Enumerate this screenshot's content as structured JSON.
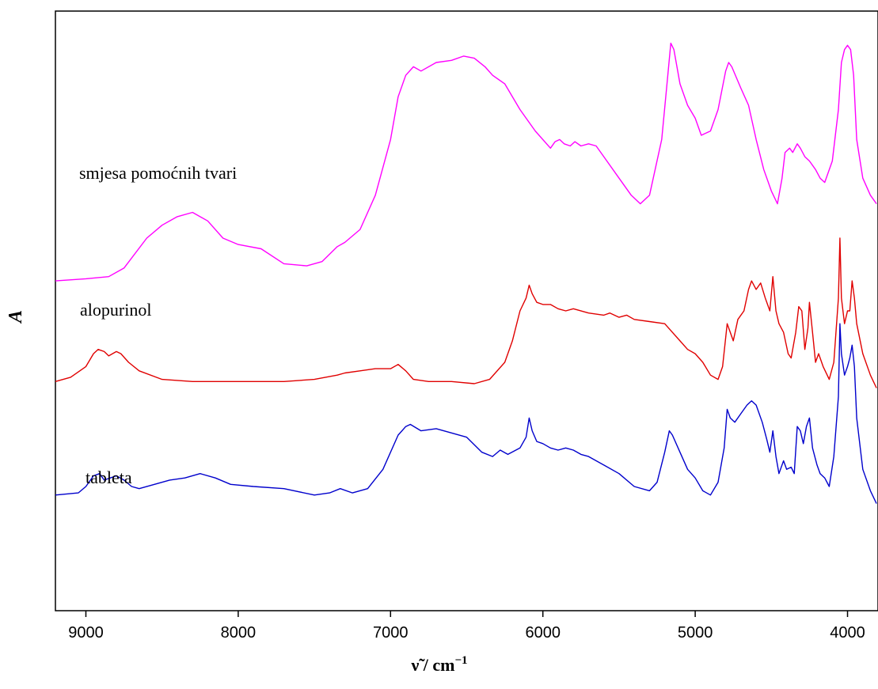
{
  "chart_data": {
    "type": "line",
    "xlabel": "ν̃ / cm",
    "xlabel_superscript": "−1",
    "ylabel": "A",
    "xlim": [
      9200,
      3800
    ],
    "x_reversed": true,
    "y_ticks_shown": false,
    "x_ticks": [
      9000,
      8000,
      7000,
      6000,
      5000,
      4000
    ],
    "x_tick_labels": [
      "9000",
      "8000",
      "7000",
      "6000",
      "5000",
      "4000"
    ],
    "grid": false,
    "legend": "inline-labels",
    "series": [
      {
        "name": "smjesa pomoćnih tvari",
        "color": "#ff00ff",
        "points": [
          [
            9200,
            0.62
          ],
          [
            9000,
            0.625
          ],
          [
            8850,
            0.63
          ],
          [
            8750,
            0.65
          ],
          [
            8600,
            0.72
          ],
          [
            8500,
            0.75
          ],
          [
            8400,
            0.77
          ],
          [
            8300,
            0.78
          ],
          [
            8200,
            0.76
          ],
          [
            8100,
            0.72
          ],
          [
            8000,
            0.705
          ],
          [
            7850,
            0.695
          ],
          [
            7700,
            0.66
          ],
          [
            7550,
            0.655
          ],
          [
            7450,
            0.665
          ],
          [
            7350,
            0.7
          ],
          [
            7300,
            0.71
          ],
          [
            7200,
            0.74
          ],
          [
            7100,
            0.82
          ],
          [
            7000,
            0.95
          ],
          [
            6950,
            1.05
          ],
          [
            6900,
            1.1
          ],
          [
            6850,
            1.12
          ],
          [
            6800,
            1.11
          ],
          [
            6700,
            1.13
          ],
          [
            6600,
            1.135
          ],
          [
            6520,
            1.145
          ],
          [
            6450,
            1.14
          ],
          [
            6380,
            1.12
          ],
          [
            6330,
            1.1
          ],
          [
            6250,
            1.08
          ],
          [
            6150,
            1.02
          ],
          [
            6050,
            0.97
          ],
          [
            5950,
            0.93
          ],
          [
            5920,
            0.945
          ],
          [
            5890,
            0.95
          ],
          [
            5860,
            0.94
          ],
          [
            5820,
            0.935
          ],
          [
            5790,
            0.945
          ],
          [
            5750,
            0.935
          ],
          [
            5700,
            0.94
          ],
          [
            5650,
            0.935
          ],
          [
            5600,
            0.91
          ],
          [
            5500,
            0.86
          ],
          [
            5420,
            0.82
          ],
          [
            5360,
            0.8
          ],
          [
            5300,
            0.82
          ],
          [
            5220,
            0.95
          ],
          [
            5180,
            1.1
          ],
          [
            5160,
            1.175
          ],
          [
            5140,
            1.16
          ],
          [
            5100,
            1.08
          ],
          [
            5050,
            1.03
          ],
          [
            5000,
            1.0
          ],
          [
            4960,
            0.96
          ],
          [
            4900,
            0.97
          ],
          [
            4850,
            1.02
          ],
          [
            4800,
            1.11
          ],
          [
            4780,
            1.13
          ],
          [
            4760,
            1.12
          ],
          [
            4700,
            1.07
          ],
          [
            4650,
            1.03
          ],
          [
            4600,
            0.95
          ],
          [
            4550,
            0.88
          ],
          [
            4500,
            0.83
          ],
          [
            4460,
            0.8
          ],
          [
            4430,
            0.86
          ],
          [
            4410,
            0.92
          ],
          [
            4380,
            0.93
          ],
          [
            4360,
            0.92
          ],
          [
            4330,
            0.94
          ],
          [
            4310,
            0.93
          ],
          [
            4280,
            0.91
          ],
          [
            4250,
            0.9
          ],
          [
            4210,
            0.88
          ],
          [
            4180,
            0.86
          ],
          [
            4150,
            0.85
          ],
          [
            4100,
            0.9
          ],
          [
            4060,
            1.02
          ],
          [
            4040,
            1.13
          ],
          [
            4020,
            1.16
          ],
          [
            4000,
            1.17
          ],
          [
            3980,
            1.16
          ],
          [
            3960,
            1.1
          ],
          [
            3940,
            0.95
          ],
          [
            3900,
            0.86
          ],
          [
            3850,
            0.82
          ],
          [
            3810,
            0.8
          ]
        ]
      },
      {
        "name": "alopurinol",
        "color": "#e00000",
        "points": [
          [
            9200,
            0.385
          ],
          [
            9100,
            0.395
          ],
          [
            9000,
            0.42
          ],
          [
            8950,
            0.45
          ],
          [
            8920,
            0.46
          ],
          [
            8880,
            0.455
          ],
          [
            8850,
            0.445
          ],
          [
            8800,
            0.455
          ],
          [
            8770,
            0.45
          ],
          [
            8720,
            0.43
          ],
          [
            8650,
            0.41
          ],
          [
            8500,
            0.39
          ],
          [
            8300,
            0.385
          ],
          [
            8000,
            0.385
          ],
          [
            7700,
            0.385
          ],
          [
            7500,
            0.39
          ],
          [
            7350,
            0.4
          ],
          [
            7300,
            0.405
          ],
          [
            7200,
            0.41
          ],
          [
            7100,
            0.415
          ],
          [
            7000,
            0.415
          ],
          [
            6950,
            0.425
          ],
          [
            6900,
            0.41
          ],
          [
            6850,
            0.39
          ],
          [
            6750,
            0.385
          ],
          [
            6600,
            0.385
          ],
          [
            6450,
            0.38
          ],
          [
            6350,
            0.39
          ],
          [
            6250,
            0.43
          ],
          [
            6200,
            0.48
          ],
          [
            6150,
            0.55
          ],
          [
            6110,
            0.58
          ],
          [
            6090,
            0.61
          ],
          [
            6070,
            0.59
          ],
          [
            6040,
            0.57
          ],
          [
            6000,
            0.565
          ],
          [
            5950,
            0.565
          ],
          [
            5900,
            0.555
          ],
          [
            5850,
            0.55
          ],
          [
            5800,
            0.555
          ],
          [
            5700,
            0.545
          ],
          [
            5600,
            0.54
          ],
          [
            5560,
            0.545
          ],
          [
            5500,
            0.535
          ],
          [
            5450,
            0.54
          ],
          [
            5400,
            0.53
          ],
          [
            5300,
            0.525
          ],
          [
            5200,
            0.52
          ],
          [
            5100,
            0.48
          ],
          [
            5050,
            0.46
          ],
          [
            5000,
            0.45
          ],
          [
            4950,
            0.43
          ],
          [
            4900,
            0.4
          ],
          [
            4850,
            0.39
          ],
          [
            4820,
            0.42
          ],
          [
            4790,
            0.52
          ],
          [
            4770,
            0.5
          ],
          [
            4750,
            0.48
          ],
          [
            4720,
            0.53
          ],
          [
            4680,
            0.55
          ],
          [
            4650,
            0.6
          ],
          [
            4630,
            0.62
          ],
          [
            4600,
            0.6
          ],
          [
            4570,
            0.615
          ],
          [
            4540,
            0.58
          ],
          [
            4510,
            0.55
          ],
          [
            4490,
            0.63
          ],
          [
            4470,
            0.55
          ],
          [
            4450,
            0.52
          ],
          [
            4420,
            0.5
          ],
          [
            4390,
            0.45
          ],
          [
            4370,
            0.44
          ],
          [
            4340,
            0.5
          ],
          [
            4320,
            0.56
          ],
          [
            4300,
            0.55
          ],
          [
            4280,
            0.46
          ],
          [
            4260,
            0.51
          ],
          [
            4250,
            0.57
          ],
          [
            4230,
            0.5
          ],
          [
            4210,
            0.43
          ],
          [
            4190,
            0.45
          ],
          [
            4160,
            0.42
          ],
          [
            4120,
            0.39
          ],
          [
            4090,
            0.43
          ],
          [
            4060,
            0.58
          ],
          [
            4050,
            0.72
          ],
          [
            4040,
            0.58
          ],
          [
            4020,
            0.52
          ],
          [
            4000,
            0.55
          ],
          [
            3985,
            0.55
          ],
          [
            3970,
            0.62
          ],
          [
            3955,
            0.58
          ],
          [
            3940,
            0.52
          ],
          [
            3900,
            0.45
          ],
          [
            3850,
            0.4
          ],
          [
            3810,
            0.37
          ]
        ]
      },
      {
        "name": "tableta",
        "color": "#0000cc",
        "points": [
          [
            9200,
            0.12
          ],
          [
            9050,
            0.125
          ],
          [
            9000,
            0.14
          ],
          [
            8950,
            0.165
          ],
          [
            8910,
            0.17
          ],
          [
            8880,
            0.155
          ],
          [
            8840,
            0.16
          ],
          [
            8800,
            0.165
          ],
          [
            8750,
            0.155
          ],
          [
            8700,
            0.14
          ],
          [
            8650,
            0.135
          ],
          [
            8550,
            0.145
          ],
          [
            8450,
            0.155
          ],
          [
            8350,
            0.16
          ],
          [
            8250,
            0.17
          ],
          [
            8150,
            0.16
          ],
          [
            8050,
            0.145
          ],
          [
            7900,
            0.14
          ],
          [
            7700,
            0.135
          ],
          [
            7500,
            0.12
          ],
          [
            7400,
            0.125
          ],
          [
            7330,
            0.135
          ],
          [
            7250,
            0.125
          ],
          [
            7150,
            0.135
          ],
          [
            7050,
            0.18
          ],
          [
            6950,
            0.26
          ],
          [
            6900,
            0.28
          ],
          [
            6870,
            0.285
          ],
          [
            6800,
            0.27
          ],
          [
            6700,
            0.275
          ],
          [
            6600,
            0.265
          ],
          [
            6500,
            0.255
          ],
          [
            6400,
            0.22
          ],
          [
            6330,
            0.21
          ],
          [
            6280,
            0.225
          ],
          [
            6230,
            0.215
          ],
          [
            6150,
            0.23
          ],
          [
            6110,
            0.255
          ],
          [
            6090,
            0.3
          ],
          [
            6070,
            0.27
          ],
          [
            6040,
            0.245
          ],
          [
            6000,
            0.24
          ],
          [
            5950,
            0.23
          ],
          [
            5900,
            0.225
          ],
          [
            5850,
            0.23
          ],
          [
            5800,
            0.225
          ],
          [
            5750,
            0.215
          ],
          [
            5700,
            0.21
          ],
          [
            5600,
            0.19
          ],
          [
            5500,
            0.17
          ],
          [
            5400,
            0.14
          ],
          [
            5300,
            0.13
          ],
          [
            5250,
            0.15
          ],
          [
            5200,
            0.22
          ],
          [
            5170,
            0.27
          ],
          [
            5150,
            0.26
          ],
          [
            5100,
            0.22
          ],
          [
            5050,
            0.18
          ],
          [
            5000,
            0.16
          ],
          [
            4950,
            0.13
          ],
          [
            4900,
            0.12
          ],
          [
            4850,
            0.15
          ],
          [
            4810,
            0.23
          ],
          [
            4790,
            0.32
          ],
          [
            4770,
            0.3
          ],
          [
            4740,
            0.29
          ],
          [
            4700,
            0.31
          ],
          [
            4660,
            0.33
          ],
          [
            4630,
            0.34
          ],
          [
            4600,
            0.33
          ],
          [
            4560,
            0.29
          ],
          [
            4530,
            0.25
          ],
          [
            4510,
            0.22
          ],
          [
            4490,
            0.27
          ],
          [
            4470,
            0.21
          ],
          [
            4450,
            0.17
          ],
          [
            4420,
            0.2
          ],
          [
            4400,
            0.18
          ],
          [
            4370,
            0.185
          ],
          [
            4350,
            0.17
          ],
          [
            4330,
            0.28
          ],
          [
            4310,
            0.27
          ],
          [
            4290,
            0.24
          ],
          [
            4270,
            0.28
          ],
          [
            4250,
            0.3
          ],
          [
            4230,
            0.23
          ],
          [
            4200,
            0.19
          ],
          [
            4180,
            0.17
          ],
          [
            4150,
            0.16
          ],
          [
            4120,
            0.14
          ],
          [
            4090,
            0.21
          ],
          [
            4060,
            0.35
          ],
          [
            4050,
            0.52
          ],
          [
            4040,
            0.45
          ],
          [
            4020,
            0.4
          ],
          [
            4000,
            0.42
          ],
          [
            3985,
            0.44
          ],
          [
            3970,
            0.47
          ],
          [
            3955,
            0.42
          ],
          [
            3940,
            0.3
          ],
          [
            3900,
            0.18
          ],
          [
            3850,
            0.13
          ],
          [
            3810,
            0.1
          ]
        ]
      }
    ]
  }
}
